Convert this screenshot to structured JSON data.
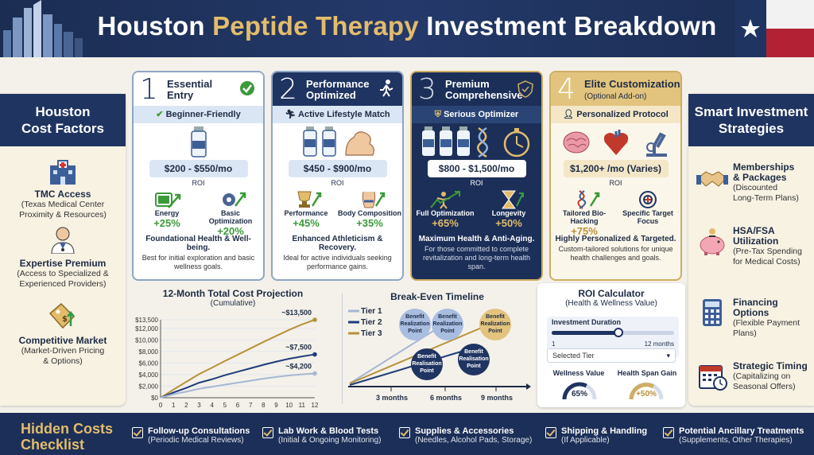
{
  "header": {
    "title_part1": "Houston ",
    "title_accent": "Peptide Therapy",
    "title_part2": " Investment Breakdown",
    "accent_color": "#e3bc6b",
    "bg_color": "#1f3461"
  },
  "left_panel": {
    "title_line1": "Houston",
    "title_line2": "Cost Factors",
    "items": [
      {
        "icon": "hospital-icon",
        "title": "TMC Access",
        "sub1": "(Texas Medical Center",
        "sub2": "Proximity & Resources)"
      },
      {
        "icon": "doctor-icon",
        "title": "Expertise Premium",
        "sub1": "(Access to Specialized &",
        "sub2": "Experienced Providers)"
      },
      {
        "icon": "price-tag-icon",
        "title": "Competitive Market",
        "sub1": "(Market-Driven Pricing",
        "sub2": "& Options)"
      }
    ]
  },
  "right_panel": {
    "title_line1": "Smart Investment",
    "title_line2": "Strategies",
    "items": [
      {
        "icon": "handshake-icon",
        "title1": "Memberships",
        "title2": "& Packages",
        "sub1": "(Discounted",
        "sub2": "Long-Term Plans)"
      },
      {
        "icon": "piggy-bank-icon",
        "title1": "HSA/FSA",
        "title2": "Utilization",
        "sub1": "(Pre-Tax Spending",
        "sub2": "for Medical Costs)"
      },
      {
        "icon": "calculator-icon",
        "title1": "Financing Options",
        "title2": "",
        "sub1": "(Flexible Payment",
        "sub2": "Plans)"
      },
      {
        "icon": "calendar-icon",
        "title1": "Strategic Timing",
        "title2": "",
        "sub1": "(Capitalizing on",
        "sub2": "Seasonal Offers)"
      }
    ]
  },
  "tiers": [
    {
      "num": "1",
      "name1": "Essential",
      "name2": "Entry",
      "badge": "Beginner-Friendly",
      "price": "$200 - $550/mo",
      "roi_label": "ROI",
      "roi": [
        {
          "label": "Energy",
          "value": "+25%",
          "icon": "battery-icon"
        },
        {
          "label": "Basic Optimization",
          "value": "+20%",
          "icon": "gear-icon"
        }
      ],
      "summary": "Foundational Health & Well-being.",
      "desc1": "Best for initial exploration and basic",
      "desc2": "wellness goals."
    },
    {
      "num": "2",
      "name1": "Performance",
      "name2": "Optimized",
      "badge": "Active Lifestyle Match",
      "price": "$450 - $900/mo",
      "roi_label": "ROI",
      "roi": [
        {
          "label": "Performance",
          "value": "+45%",
          "icon": "trophy-icon"
        },
        {
          "label": "Body Composition",
          "value": "+35%",
          "icon": "body-icon"
        }
      ],
      "summary": "Enhanced Athleticism & Recovery.",
      "desc1": "Ideal for active individuals seeking",
      "desc2": "performance gains."
    },
    {
      "num": "3",
      "name1": "Premium",
      "name2": "Comprehensive",
      "badge": "Serious Optimizer",
      "price": "$800 - $1,500/mo",
      "roi_label": "ROI",
      "roi": [
        {
          "label": "Full Optimization",
          "value": "+65%",
          "icon": "person-arrow-icon"
        },
        {
          "label": "Longevity",
          "value": "+50%",
          "icon": "hourglass-icon"
        }
      ],
      "summary": "Maximum Health & Anti-Aging.",
      "desc1": "For those committed to complete",
      "desc2": "revitalization and long-term health span."
    },
    {
      "num": "4",
      "name1": "Elite Customization",
      "name2": "(Optional Add-on)",
      "badge": "Personalized Protocol",
      "price": "$1,200+ /mo (Varies)",
      "roi_label": "ROI",
      "roi": [
        {
          "label": "Tailored Bio-Hacking",
          "value": "+75%",
          "icon": "dna-icon"
        },
        {
          "label": "Specific Target Focus",
          "value": "",
          "icon": "target-icon"
        }
      ],
      "summary": "Highly Personalized & Targeted.",
      "desc1": "Custom-tailored solutions for unique",
      "desc2": "health challenges and goals."
    }
  ],
  "projection": {
    "title": "12-Month Total Cost Projection",
    "subtitle": "(Cumulative)",
    "annotations": [
      "~$13,500",
      "~$7,500",
      "~$4,200"
    ]
  },
  "chart_data": {
    "type": "line",
    "x": [
      0,
      1,
      2,
      3,
      4,
      5,
      6,
      7,
      8,
      9,
      10,
      11,
      12
    ],
    "y_ticks": [
      "$0",
      "$2,000",
      "$4,000",
      "$6,000",
      "$8,000",
      "$10,000",
      "$12,000",
      "$13,500"
    ],
    "x_ticks": [
      "0",
      "1",
      "2",
      "3",
      "4",
      "5",
      "6",
      "7",
      "8",
      "9",
      "10",
      "11",
      "12"
    ],
    "ylim": [
      0,
      13500
    ],
    "series": [
      {
        "name": "Tier 3",
        "color": "#b8913a",
        "values": [
          0,
          1400,
          2750,
          4100,
          5200,
          6350,
          7450,
          8550,
          9650,
          10700,
          11750,
          12700,
          13500
        ]
      },
      {
        "name": "Tier 2",
        "color": "#1f3d7a",
        "values": [
          0,
          900,
          1700,
          2600,
          3200,
          3900,
          4500,
          5100,
          5700,
          6250,
          6750,
          7150,
          7500
        ]
      },
      {
        "name": "Tier 1",
        "color": "#a6b7d4",
        "values": [
          0,
          600,
          1050,
          1550,
          1900,
          2250,
          2600,
          2950,
          3300,
          3600,
          3850,
          4050,
          4200
        ]
      }
    ]
  },
  "breakeven": {
    "title": "Break-Even Timeline",
    "legend": [
      "Tier 1",
      "Tier 2",
      "Tier 3"
    ],
    "point_label1": "Benefit",
    "point_label2": "Realization",
    "point_label3": "Point",
    "alt_label2": "Realisation",
    "months": [
      "3 months",
      "6 months",
      "9 months"
    ]
  },
  "roi_calc": {
    "title": "ROI Calculator",
    "subtitle": "(Health & Wellness Value)",
    "duration_label": "Investment Duration",
    "min": "1",
    "max": "12 months",
    "duration_value": 7,
    "select_placeholder": "Selected Tier",
    "wellness_label": "Wellness Value",
    "wellness_value": "65%",
    "healthspan_label": "Health Span Gain",
    "healthspan_value": "+50%"
  },
  "footer": {
    "title1": "Hidden Costs",
    "title2": "Checklist",
    "items": [
      {
        "title": "Follow-up Consultations",
        "sub": "(Periodic Medical Reviews)"
      },
      {
        "title": "Lab Work & Blood Tests",
        "sub": "(Initial & Ongoing Monitoring)"
      },
      {
        "title": "Supplies & Accessories",
        "sub": "(Needles, Alcohol Pads, Storage)"
      },
      {
        "title": "Shipping & Handling",
        "sub": "(If Applicable)"
      },
      {
        "title": "Potential Ancillary Treatments",
        "sub": "(Supplements, Other Therapies)"
      }
    ]
  }
}
